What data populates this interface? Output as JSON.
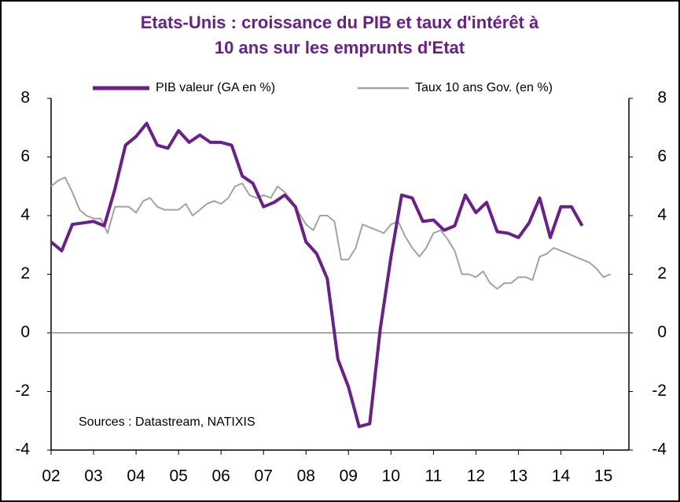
{
  "chart_data": {
    "type": "line",
    "title": "Etats-Unis : croissance du PIB et taux d'intérêt à",
    "subtitle": "10 ans sur les emprunts d'Etat",
    "annotation": "Sources : Datastream, NATIXIS",
    "xlim": [
      2002,
      2015.6
    ],
    "xticks": [
      {
        "value": 2002,
        "label": "02"
      },
      {
        "value": 2003,
        "label": "03"
      },
      {
        "value": 2004,
        "label": "04"
      },
      {
        "value": 2005,
        "label": "05"
      },
      {
        "value": 2006,
        "label": "06"
      },
      {
        "value": 2007,
        "label": "07"
      },
      {
        "value": 2008,
        "label": "08"
      },
      {
        "value": 2009,
        "label": "09"
      },
      {
        "value": 2010,
        "label": "10"
      },
      {
        "value": 2011,
        "label": "11"
      },
      {
        "value": 2012,
        "label": "12"
      },
      {
        "value": 2013,
        "label": "13"
      },
      {
        "value": 2014,
        "label": "14"
      },
      {
        "value": 2015,
        "label": "15"
      }
    ],
    "ylim": [
      -4,
      8
    ],
    "yticks": [
      -4,
      -2,
      0,
      2,
      4,
      6,
      8
    ],
    "y2lim": [
      -4,
      8
    ],
    "y2ticks": [
      -4,
      -2,
      0,
      2,
      4,
      6,
      8
    ],
    "legend": "top",
    "series": [
      {
        "name": "PIB valeur (GA en %)",
        "color": "#6a1f8a",
        "x": [
          2002,
          2002.25,
          2002.5,
          2002.75,
          2003,
          2003.25,
          2003.5,
          2003.75,
          2004,
          2004.25,
          2004.5,
          2004.75,
          2005,
          2005.25,
          2005.5,
          2005.75,
          2006,
          2006.25,
          2006.5,
          2006.75,
          2007,
          2007.25,
          2007.5,
          2007.75,
          2008,
          2008.25,
          2008.5,
          2008.75,
          2009,
          2009.25,
          2009.5,
          2009.75,
          2010,
          2010.25,
          2010.5,
          2010.75,
          2011,
          2011.25,
          2011.5,
          2011.75,
          2012,
          2012.25,
          2012.5,
          2012.75,
          2013,
          2013.25,
          2013.5,
          2013.75,
          2014,
          2014.25,
          2014.5
        ],
        "values": [
          3.1,
          2.8,
          3.7,
          3.75,
          3.8,
          3.65,
          4.9,
          6.4,
          6.7,
          7.15,
          6.4,
          6.3,
          6.9,
          6.5,
          6.75,
          6.5,
          6.5,
          6.4,
          5.35,
          5.1,
          4.3,
          4.45,
          4.7,
          4.3,
          3.1,
          2.7,
          1.85,
          -0.9,
          -1.85,
          -3.2,
          -3.1,
          0.15,
          2.6,
          4.7,
          4.6,
          3.8,
          3.85,
          3.5,
          3.65,
          4.7,
          4.1,
          4.45,
          3.45,
          3.4,
          3.25,
          3.75,
          4.6,
          3.25,
          4.3,
          4.3,
          3.65
        ]
      },
      {
        "name": "Taux 10 ans Gov. (en %)",
        "color": "#a3a3a3",
        "axis": "y2",
        "x": [
          2002,
          2002.17,
          2002.33,
          2002.5,
          2002.67,
          2002.83,
          2003,
          2003.17,
          2003.33,
          2003.5,
          2003.67,
          2003.83,
          2004,
          2004.17,
          2004.33,
          2004.5,
          2004.67,
          2004.83,
          2005,
          2005.17,
          2005.33,
          2005.5,
          2005.67,
          2005.83,
          2006,
          2006.17,
          2006.33,
          2006.5,
          2006.67,
          2006.83,
          2007,
          2007.17,
          2007.33,
          2007.5,
          2007.67,
          2007.83,
          2008,
          2008.17,
          2008.33,
          2008.5,
          2008.67,
          2008.83,
          2009,
          2009.17,
          2009.33,
          2009.5,
          2009.67,
          2009.83,
          2010,
          2010.17,
          2010.33,
          2010.5,
          2010.67,
          2010.83,
          2011,
          2011.17,
          2011.33,
          2011.5,
          2011.67,
          2011.83,
          2012,
          2012.17,
          2012.33,
          2012.5,
          2012.67,
          2012.83,
          2013,
          2013.17,
          2013.33,
          2013.5,
          2013.67,
          2013.83,
          2014,
          2014.17,
          2014.33,
          2014.5,
          2014.67,
          2014.83,
          2015,
          2015.17
        ],
        "values": [
          5.0,
          5.2,
          5.3,
          4.8,
          4.2,
          4.0,
          3.9,
          3.9,
          3.4,
          4.3,
          4.3,
          4.3,
          4.1,
          4.5,
          4.6,
          4.3,
          4.2,
          4.2,
          4.2,
          4.4,
          4.0,
          4.2,
          4.4,
          4.5,
          4.4,
          4.6,
          5.0,
          5.1,
          4.7,
          4.6,
          4.7,
          4.6,
          5.0,
          4.8,
          4.5,
          4.1,
          3.7,
          3.5,
          4.0,
          4.0,
          3.8,
          2.5,
          2.5,
          2.9,
          3.7,
          3.6,
          3.5,
          3.4,
          3.7,
          3.8,
          3.3,
          2.9,
          2.6,
          2.9,
          3.4,
          3.5,
          3.2,
          2.8,
          2.0,
          2.0,
          1.9,
          2.1,
          1.7,
          1.5,
          1.7,
          1.7,
          1.9,
          1.9,
          1.8,
          2.6,
          2.7,
          2.9,
          2.8,
          2.7,
          2.6,
          2.5,
          2.4,
          2.2,
          1.9,
          2.0
        ]
      }
    ]
  }
}
